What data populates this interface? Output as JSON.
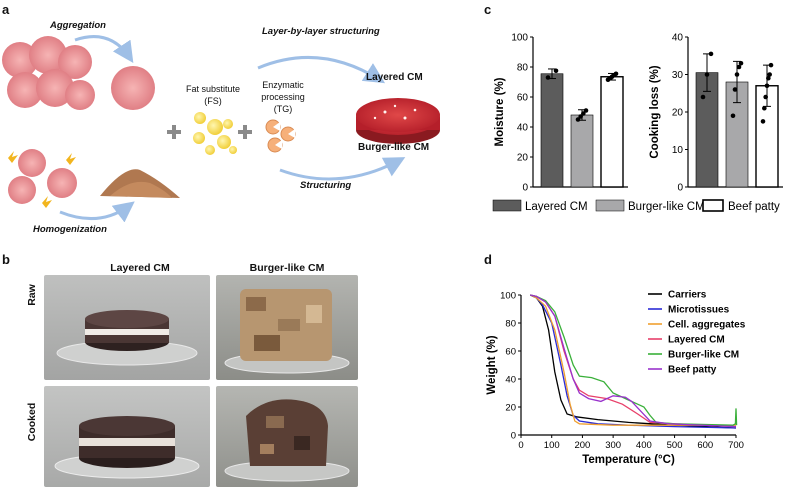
{
  "panels": {
    "a": "a",
    "b": "b",
    "c": "c",
    "d": "d"
  },
  "schematic": {
    "aggregation": "Aggregation",
    "homogenization": "Homogenization",
    "fat_substitute": "Fat substitute",
    "fs": "(FS)",
    "enzymatic": "Enzymatic",
    "processing": "processing",
    "tg": "(TG)",
    "layer_by_layer": "Layer-by-layer structuring",
    "structuring": "Structuring",
    "layered_cm": "Layered CM",
    "burger_cm": "Burger-like CM"
  },
  "photos": {
    "col_layered": "Layered CM",
    "col_burger": "Burger-like CM",
    "row_raw": "Raw",
    "row_cooked": "Cooked"
  },
  "colors": {
    "layered_bar": "#5c5c5c",
    "burger_bar": "#a8a8aa",
    "beef_bar": "#ffffff"
  },
  "chart_data": [
    {
      "type": "bar",
      "ylabel": "Moisture (%)",
      "ylim": [
        0,
        100
      ],
      "yticks": [
        0,
        20,
        40,
        60,
        80,
        100
      ],
      "categories": [
        "Layered CM",
        "Burger-like CM",
        "Beef patty"
      ],
      "values": [
        75.5,
        48,
        73.5
      ],
      "errors": [
        3.2,
        3.5,
        2.2
      ],
      "points": [
        [
          73,
          77.5
        ],
        [
          45,
          47,
          49,
          51
        ],
        [
          71.5,
          72.5,
          73.5,
          74.5,
          75.5
        ]
      ]
    },
    {
      "type": "bar",
      "ylabel": "Cooking loss (%)",
      "ylim": [
        0,
        40
      ],
      "yticks": [
        0,
        10,
        20,
        30,
        40
      ],
      "categories": [
        "Layered CM",
        "Burger-like CM",
        "Beef patty"
      ],
      "values": [
        30.5,
        28,
        27
      ],
      "errors": [
        5,
        5.5,
        5.5
      ],
      "points": [
        [
          24,
          30,
          35.5
        ],
        [
          19,
          26,
          30,
          32,
          33
        ],
        [
          17.5,
          21,
          24,
          27,
          29,
          30,
          32.5
        ]
      ]
    },
    {
      "type": "line",
      "xlabel": "Temperature (°C)",
      "ylabel": "Weight (%)",
      "xlim": [
        0,
        700
      ],
      "ylim": [
        0,
        100
      ],
      "xticks": [
        0,
        100,
        200,
        300,
        400,
        500,
        600,
        700
      ],
      "yticks": [
        0,
        20,
        40,
        60,
        80,
        100
      ],
      "series": [
        {
          "name": "Carriers",
          "color": "#000000",
          "points": [
            [
              30,
              100
            ],
            [
              50,
              98
            ],
            [
              70,
              92
            ],
            [
              90,
              75
            ],
            [
              110,
              45
            ],
            [
              130,
              25
            ],
            [
              150,
              15
            ],
            [
              180,
              13
            ],
            [
              250,
              11
            ],
            [
              350,
              9
            ],
            [
              500,
              7
            ],
            [
              700,
              5
            ]
          ]
        },
        {
          "name": "Microtissues",
          "color": "#2b2bd6",
          "points": [
            [
              30,
              100
            ],
            [
              50,
              98
            ],
            [
              70,
              93
            ],
            [
              100,
              80
            ],
            [
              130,
              50
            ],
            [
              150,
              28
            ],
            [
              170,
              14
            ],
            [
              190,
              10
            ],
            [
              250,
              8
            ],
            [
              350,
              7
            ],
            [
              500,
              6
            ],
            [
              700,
              5
            ]
          ]
        },
        {
          "name": "Cell. aggregates",
          "color": "#f0a030",
          "points": [
            [
              30,
              100
            ],
            [
              50,
              98
            ],
            [
              80,
              92
            ],
            [
              110,
              75
            ],
            [
              140,
              45
            ],
            [
              160,
              22
            ],
            [
              175,
              10
            ],
            [
              190,
              8
            ],
            [
              300,
              7
            ],
            [
              500,
              7
            ],
            [
              700,
              7
            ]
          ]
        },
        {
          "name": "Layered CM",
          "color": "#e8406a",
          "points": [
            [
              30,
              100
            ],
            [
              50,
              99
            ],
            [
              80,
              95
            ],
            [
              110,
              85
            ],
            [
              140,
              60
            ],
            [
              170,
              40
            ],
            [
              190,
              32
            ],
            [
              220,
              28
            ],
            [
              280,
              26
            ],
            [
              330,
              22
            ],
            [
              380,
              15
            ],
            [
              420,
              9
            ],
            [
              500,
              8
            ],
            [
              700,
              6
            ]
          ]
        },
        {
          "name": "Burger-like CM",
          "color": "#3ab03a",
          "points": [
            [
              30,
              100
            ],
            [
              50,
              99
            ],
            [
              80,
              96
            ],
            [
              110,
              88
            ],
            [
              140,
              70
            ],
            [
              170,
              50
            ],
            [
              190,
              42
            ],
            [
              230,
              41
            ],
            [
              270,
              38
            ],
            [
              300,
              30
            ],
            [
              350,
              25
            ],
            [
              380,
              22
            ],
            [
              400,
              20
            ],
            [
              420,
              14
            ],
            [
              440,
              9
            ],
            [
              500,
              8
            ],
            [
              690,
              7
            ],
            [
              698,
              8
            ],
            [
              700,
              19
            ],
            [
              702,
              7
            ]
          ]
        },
        {
          "name": "Beef patty",
          "color": "#9933cc",
          "points": [
            [
              30,
              100
            ],
            [
              50,
              99
            ],
            [
              80,
              95
            ],
            [
              110,
              85
            ],
            [
              140,
              62
            ],
            [
              170,
              40
            ],
            [
              190,
              30
            ],
            [
              220,
              26
            ],
            [
              260,
              24
            ],
            [
              300,
              28
            ],
            [
              340,
              27
            ],
            [
              360,
              24
            ],
            [
              390,
              17
            ],
            [
              420,
              10
            ],
            [
              480,
              8
            ],
            [
              700,
              6
            ]
          ]
        }
      ]
    }
  ]
}
